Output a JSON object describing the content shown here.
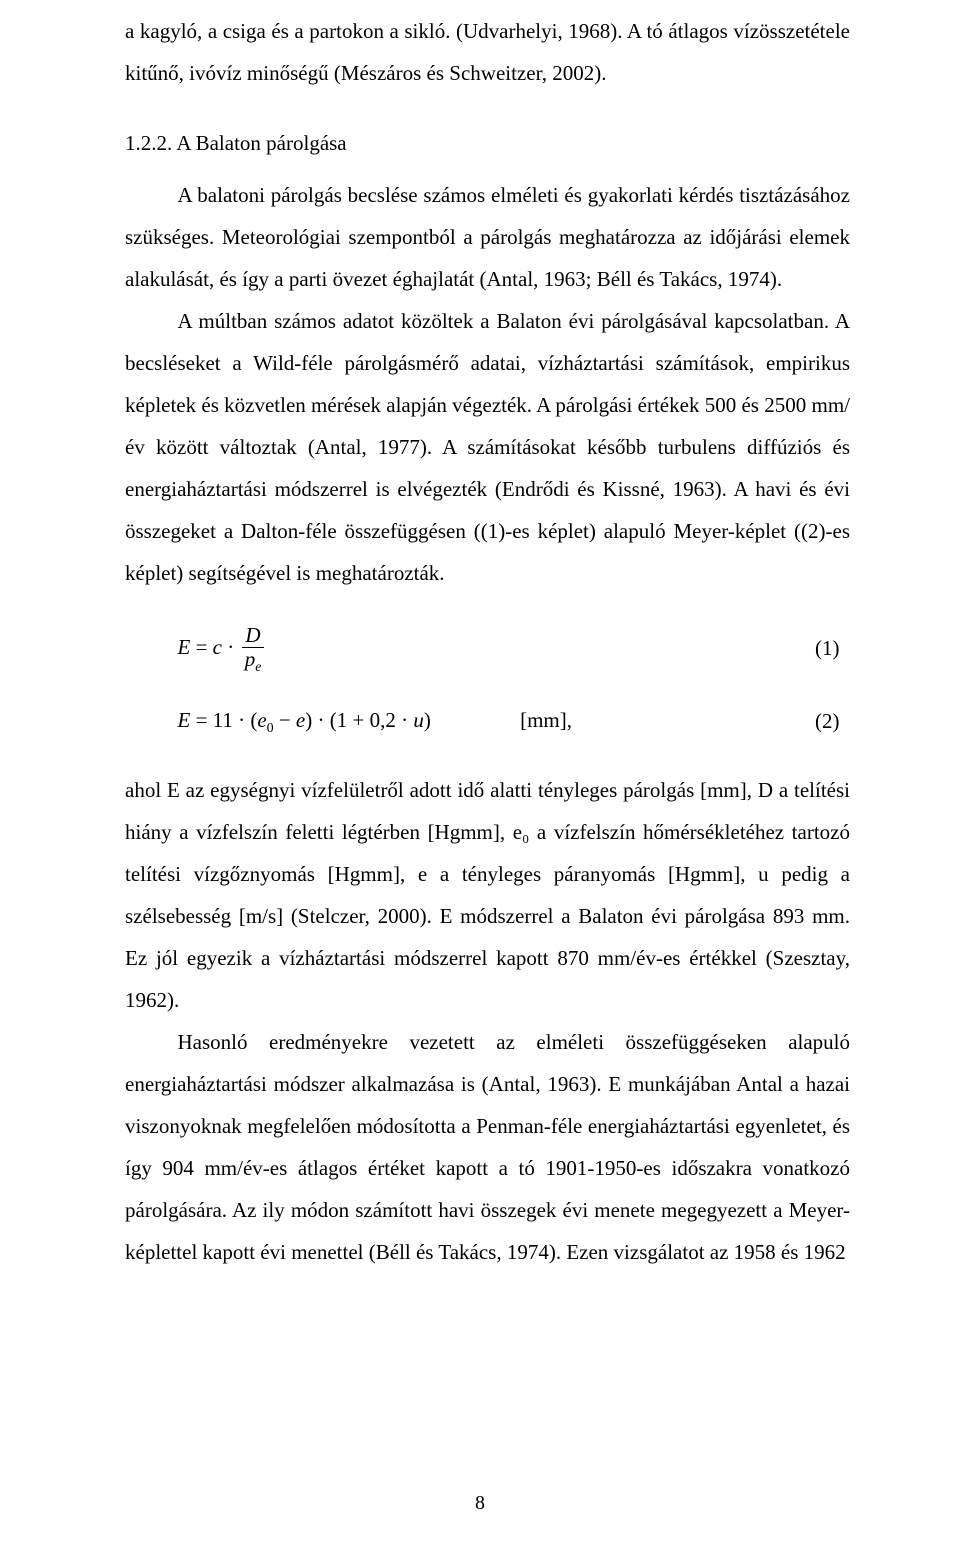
{
  "para1": "a kagyló, a csiga és a partokon a sikló. (Udvarhelyi, 1968). A tó átlagos vízösszetétele kitűnő, ivóvíz minőségű (Mészáros és Schweitzer, 2002).",
  "heading": "1.2.2. A Balaton párolgása",
  "para2_first": "A balatoni párolgás becslése számos elméleti és gyakorlati kérdés tisztázásához szükséges. Meteorológiai szempontból a párolgás meghatározza az időjárási elemek alakulását, és így a parti övezet éghajlatát (Antal, 1963; Béll és Takács, 1974).",
  "para3": "A múltban számos adatot közöltek a Balaton évi párolgásával kapcsolatban. A becsléseket a Wild-féle párolgásmérő adatai, vízháztartási számítások, empirikus képletek és közvetlen mérések alapján végezték. A párolgási értékek 500 és 2500 mm/év között változtak (Antal, 1977). A számításokat később turbulens diffúziós és energiaháztartási módszerrel is elvégezték (Endrődi és Kissné, 1963). A havi és évi összegeket a Dalton-féle összefüggésen ((1)-es képlet) alapuló Meyer-képlet ((2)-es képlet) segítségével is meghatározták.",
  "eq1": {
    "lhs": "E",
    "op": " = ",
    "c": "c",
    "dot": " · ",
    "frac_num": "D",
    "frac_den_sym": "p",
    "frac_den_sub": "e",
    "number": "(1)"
  },
  "eq2": {
    "lhs": "E",
    "op": " = ",
    "coef": "11",
    "dot1": " · ",
    "lpar1": "(",
    "e0sym": "e",
    "e0sub": "0",
    "minus": " − ",
    "e": "e",
    "rpar1": ")",
    "dot2": " · ",
    "lpar2": "(",
    "one": "1",
    "plus": " + ",
    "two": "0,2",
    "dot3": " · ",
    "u": "u",
    "rpar2": ")",
    "unit": "[mm],",
    "number": "(2)"
  },
  "para4": "ahol E az egységnyi vízfelületről adott idő alatti tényleges párolgás [mm], D a telítési hiány a vízfelszín feletti légtérben [Hgmm], e₀ a vízfelszín hőmérsékletéhez tartozó telítési vízgőznyomás [Hgmm], e a tényleges páranyomás [Hgmm], u pedig a szélsebesség [m/s] (Stelczer, 2000). E módszerrel a Balaton évi párolgása 893 mm. Ez jól egyezik a vízháztartási módszerrel kapott 870 mm/év-es értékkel (Szesztay, 1962).",
  "para5": "Hasonló eredményekre vezetett az elméleti összefüggéseken alapuló energiaháztartási módszer alkalmazása is (Antal, 1963). E munkájában Antal a hazai viszonyoknak megfelelően módosította a Penman-féle energiaháztartási egyenletet, és így 904 mm/év-es átlagos értéket kapott a tó 1901-1950-es időszakra vonatkozó párolgására. Az ily módon számított havi összegek évi menete megegyezett a Meyer-képlettel kapott évi menettel (Béll és Takács, 1974). Ezen vizsgálatot az 1958 és 1962",
  "page_number": "8"
}
